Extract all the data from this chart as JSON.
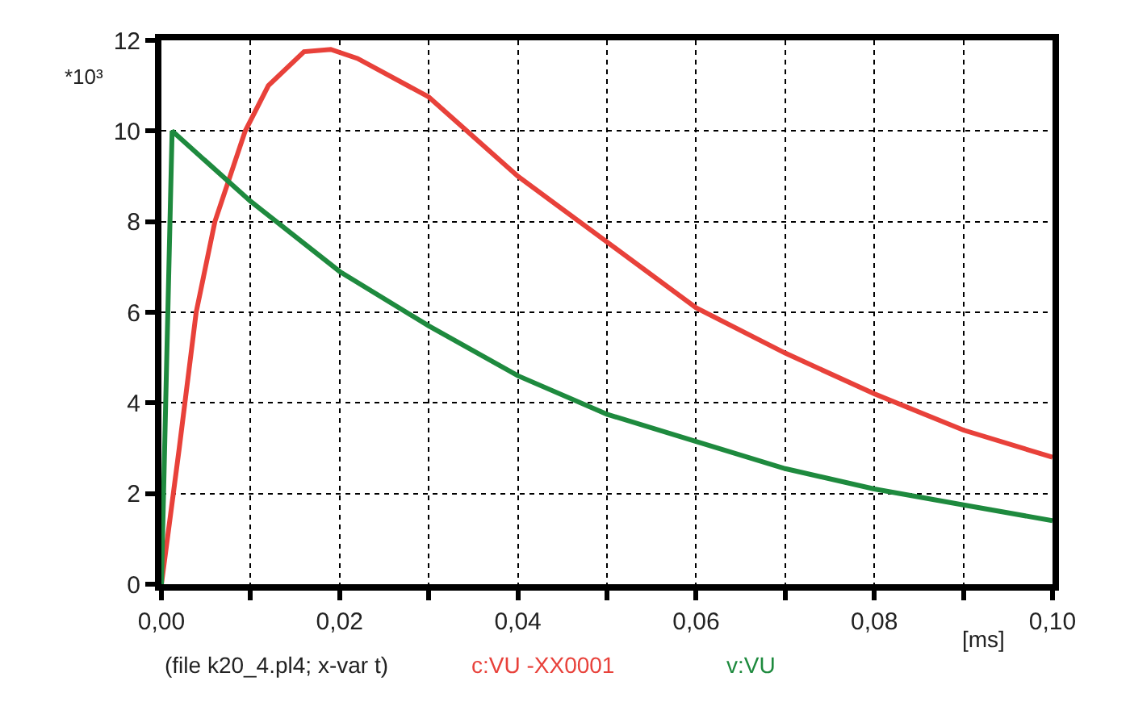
{
  "chart_data": {
    "type": "line",
    "xlabel": "[ms]",
    "ylabel": "*10³",
    "annotations": [
      "(file k20_4.pl4; x-var t)"
    ],
    "series": [
      {
        "name": "c:VU -XX0001",
        "color": "#e8413a",
        "x": [
          0,
          0.002,
          0.0039,
          0.006,
          0.0094,
          0.012,
          0.016,
          0.019,
          0.022,
          0.03,
          0.04,
          0.05,
          0.06,
          0.07,
          0.08,
          0.09,
          0.1
        ],
        "values": [
          0,
          3.0,
          6.0,
          8.0,
          10.0,
          11.0,
          11.75,
          11.8,
          11.6,
          10.75,
          9.0,
          7.55,
          6.1,
          5.1,
          4.2,
          3.4,
          2.8
        ]
      },
      {
        "name": "v:VU",
        "color": "#1e8a3e",
        "x": [
          0,
          0.0012,
          0.01,
          0.02,
          0.03,
          0.04,
          0.05,
          0.06,
          0.07,
          0.08,
          0.09,
          0.1
        ],
        "values": [
          0,
          10.0,
          8.45,
          6.9,
          5.7,
          4.6,
          3.75,
          3.15,
          2.55,
          2.1,
          1.75,
          1.4
        ]
      }
    ],
    "xlim": [
      0,
      0.1
    ],
    "xticks": [
      {
        "value": 0,
        "label": "0,00"
      },
      {
        "value": 0.01,
        "label": null
      },
      {
        "value": 0.02,
        "label": "0,02"
      },
      {
        "value": 0.03,
        "label": null
      },
      {
        "value": 0.04,
        "label": "0,04"
      },
      {
        "value": 0.05,
        "label": null
      },
      {
        "value": 0.06,
        "label": "0,06"
      },
      {
        "value": 0.07,
        "label": null
      },
      {
        "value": 0.08,
        "label": "0,08"
      },
      {
        "value": 0.09,
        "label": null
      },
      {
        "value": 0.1,
        "label": "0,10"
      }
    ],
    "ylim": [
      0,
      12
    ],
    "yticks": [
      0,
      2,
      4,
      6,
      8,
      10,
      12
    ],
    "grid": true,
    "line_style": "solid",
    "marker": "none"
  }
}
